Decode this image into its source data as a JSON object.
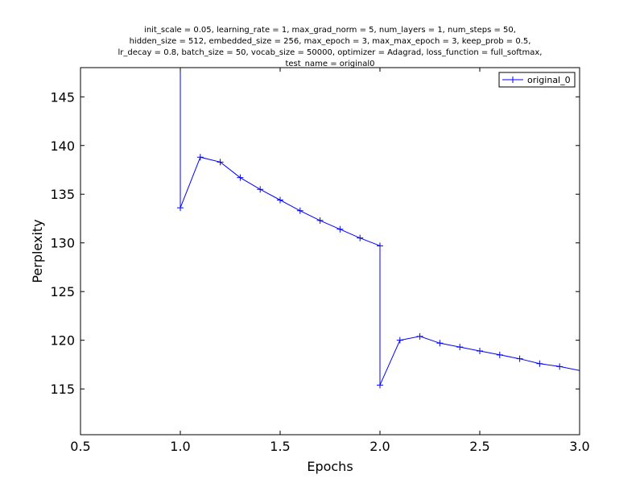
{
  "chart_data": {
    "type": "line",
    "title_lines": [
      "init_scale = 0.05, learning_rate = 1, max_grad_norm = 5, num_layers = 1, num_steps = 50,",
      "hidden_size = 512, embedded_size = 256, max_epoch = 3, max_max_epoch = 3, keep_prob = 0.5,",
      "lr_decay = 0.8, batch_size = 50, vocab_size = 50000, optimizer = Adagrad, loss_function = full_softmax,",
      "test_name = original0"
    ],
    "xlabel": "Epochs",
    "ylabel": "Perplexity",
    "xlim": [
      0.5,
      3.0
    ],
    "ylim": [
      110.3,
      148.0
    ],
    "xticks": [
      "0.5",
      "1.0",
      "1.5",
      "2.0",
      "2.5",
      "3.0"
    ],
    "yticks": [
      "115",
      "120",
      "125",
      "130",
      "135",
      "140",
      "145"
    ],
    "legend_position": "top-right",
    "color": "#0000ff",
    "series": [
      {
        "name": "original_0",
        "x": [
          1.0,
          1.0,
          1.1,
          1.2,
          1.3,
          1.4,
          1.5,
          1.6,
          1.7,
          1.8,
          1.9,
          2.0,
          2.0,
          2.1,
          2.2,
          2.3,
          2.4,
          2.5,
          2.6,
          2.7,
          2.8,
          2.9,
          3.0
        ],
        "y": [
          148.0,
          133.6,
          138.8,
          138.3,
          136.7,
          135.5,
          134.4,
          133.3,
          132.3,
          131.4,
          130.5,
          129.7,
          115.4,
          120.0,
          120.4,
          119.7,
          119.3,
          118.9,
          118.5,
          118.1,
          117.6,
          117.3,
          116.9
        ],
        "markers": [
          false,
          true,
          true,
          true,
          true,
          true,
          true,
          true,
          true,
          true,
          true,
          true,
          true,
          true,
          true,
          true,
          true,
          true,
          true,
          true,
          true,
          true,
          false
        ]
      }
    ]
  }
}
